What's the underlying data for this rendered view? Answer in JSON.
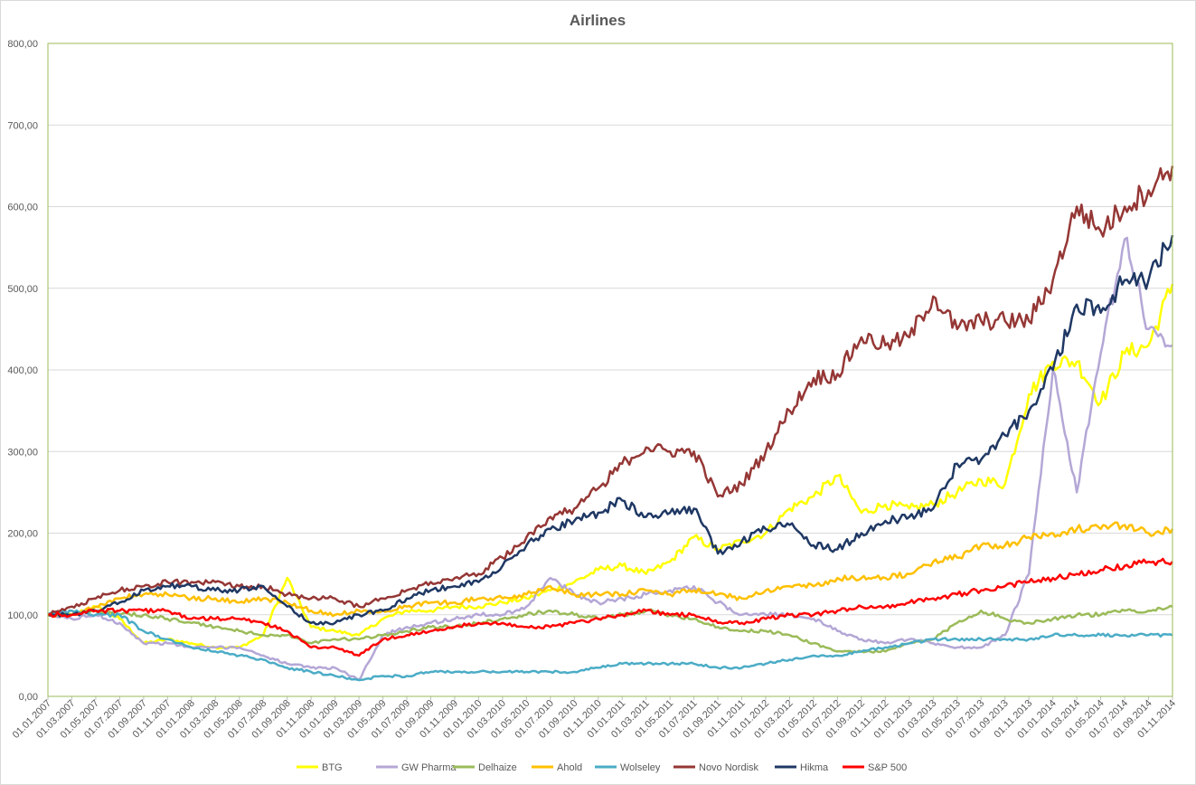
{
  "chart_data": {
    "type": "line",
    "title": "Airlines",
    "xlabel": "",
    "ylabel": "",
    "ylim": [
      0,
      800
    ],
    "y_ticks": [
      "0,00",
      "100,00",
      "200,00",
      "300,00",
      "400,00",
      "500,00",
      "600,00",
      "700,00",
      "800,00"
    ],
    "grid": "horizontal",
    "legend_position": "bottom",
    "categories": [
      "01.01.2007",
      "01.03.2007",
      "01.05.2007",
      "01.07.2007",
      "01.09.2007",
      "01.11.2007",
      "01.01.2008",
      "01.03.2008",
      "01.05.2008",
      "01.07.2008",
      "01.09.2008",
      "01.11.2008",
      "01.01.2009",
      "01.03.2009",
      "01.05.2009",
      "01.07.2009",
      "01.09.2009",
      "01.11.2009",
      "01.01.2010",
      "01.03.2010",
      "01.05.2010",
      "01.07.2010",
      "01.09.2010",
      "01.11.2010",
      "01.01.2011",
      "01.03.2011",
      "01.05.2011",
      "01.07.2011",
      "01.09.2011",
      "01.11.2011",
      "01.01.2012",
      "01.03.2012",
      "01.05.2012",
      "01.07.2012",
      "01.09.2012",
      "01.11.2012",
      "01.01.2013",
      "01.03.2013",
      "01.05.2013",
      "01.07.2013",
      "01.09.2013",
      "01.11.2013",
      "01.01.2014",
      "01.03.2014",
      "01.05.2014",
      "01.07.2014",
      "01.09.2014",
      "01.11.2014"
    ],
    "series": [
      {
        "name": "BTG",
        "color": "#FFFF00",
        "values": [
          100,
          100,
          110,
          95,
          65,
          70,
          65,
          60,
          60,
          75,
          145,
          85,
          80,
          75,
          95,
          105,
          105,
          110,
          110,
          115,
          120,
          130,
          140,
          155,
          160,
          150,
          165,
          195,
          180,
          190,
          200,
          230,
          245,
          270,
          225,
          235,
          230,
          235,
          250,
          265,
          260,
          370,
          410,
          410,
          360,
          420,
          430,
          505
        ]
      },
      {
        "name": "GW Pharma",
        "color": "#B4A7D6",
        "values": [
          100,
          95,
          100,
          90,
          65,
          65,
          60,
          60,
          60,
          50,
          40,
          35,
          35,
          20,
          75,
          85,
          90,
          95,
          100,
          100,
          110,
          145,
          125,
          115,
          120,
          125,
          130,
          135,
          115,
          100,
          100,
          100,
          95,
          80,
          70,
          65,
          70,
          65,
          60,
          60,
          75,
          150,
          400,
          250,
          420,
          560,
          450,
          430
        ]
      },
      {
        "name": "Delhaize",
        "color": "#9BBB59",
        "values": [
          100,
          100,
          105,
          100,
          100,
          95,
          90,
          85,
          80,
          75,
          75,
          65,
          70,
          70,
          75,
          80,
          85,
          85,
          90,
          95,
          100,
          105,
          100,
          95,
          100,
          105,
          100,
          95,
          85,
          80,
          80,
          75,
          65,
          55,
          55,
          55,
          65,
          70,
          90,
          105,
          95,
          90,
          95,
          100,
          100,
          105,
          105,
          110
        ]
      },
      {
        "name": "Ahold",
        "color": "#FFC000",
        "values": [
          100,
          100,
          110,
          120,
          125,
          125,
          120,
          120,
          115,
          120,
          115,
          105,
          100,
          105,
          105,
          110,
          115,
          115,
          120,
          120,
          125,
          135,
          125,
          125,
          125,
          130,
          125,
          130,
          125,
          120,
          130,
          135,
          135,
          145,
          145,
          145,
          150,
          165,
          170,
          185,
          185,
          195,
          200,
          205,
          205,
          210,
          200,
          205
        ]
      },
      {
        "name": "Wolseley",
        "color": "#4BACC6",
        "values": [
          100,
          105,
          100,
          100,
          80,
          70,
          60,
          55,
          50,
          45,
          35,
          30,
          25,
          20,
          25,
          25,
          30,
          30,
          30,
          30,
          30,
          30,
          30,
          35,
          40,
          40,
          40,
          40,
          35,
          35,
          40,
          45,
          50,
          50,
          55,
          60,
          65,
          70,
          70,
          70,
          70,
          70,
          75,
          75,
          75,
          75,
          75,
          75
        ]
      },
      {
        "name": "Novo Nordisk",
        "color": "#953735",
        "values": [
          100,
          110,
          120,
          130,
          135,
          140,
          140,
          140,
          135,
          135,
          125,
          120,
          120,
          110,
          120,
          130,
          140,
          145,
          150,
          170,
          195,
          220,
          230,
          255,
          285,
          305,
          300,
          300,
          245,
          260,
          300,
          350,
          390,
          395,
          440,
          430,
          440,
          490,
          450,
          460,
          460,
          460,
          510,
          600,
          570,
          600,
          620,
          650
        ]
      },
      {
        "name": "Hikma",
        "color": "#1F3864",
        "values": [
          100,
          100,
          105,
          115,
          130,
          135,
          135,
          130,
          130,
          135,
          110,
          90,
          90,
          100,
          105,
          120,
          130,
          135,
          140,
          160,
          185,
          205,
          215,
          225,
          240,
          220,
          225,
          230,
          175,
          190,
          205,
          210,
          185,
          180,
          200,
          215,
          220,
          230,
          285,
          290,
          320,
          350,
          400,
          480,
          470,
          510,
          510,
          565
        ]
      },
      {
        "name": "S&P 500",
        "color": "#FF0000",
        "values": [
          100,
          100,
          105,
          105,
          105,
          105,
          95,
          95,
          95,
          90,
          80,
          60,
          60,
          50,
          70,
          75,
          80,
          85,
          90,
          90,
          85,
          85,
          90,
          95,
          100,
          105,
          100,
          100,
          90,
          90,
          95,
          100,
          100,
          105,
          110,
          110,
          115,
          120,
          125,
          130,
          135,
          140,
          145,
          150,
          155,
          160,
          165,
          165
        ]
      }
    ]
  }
}
